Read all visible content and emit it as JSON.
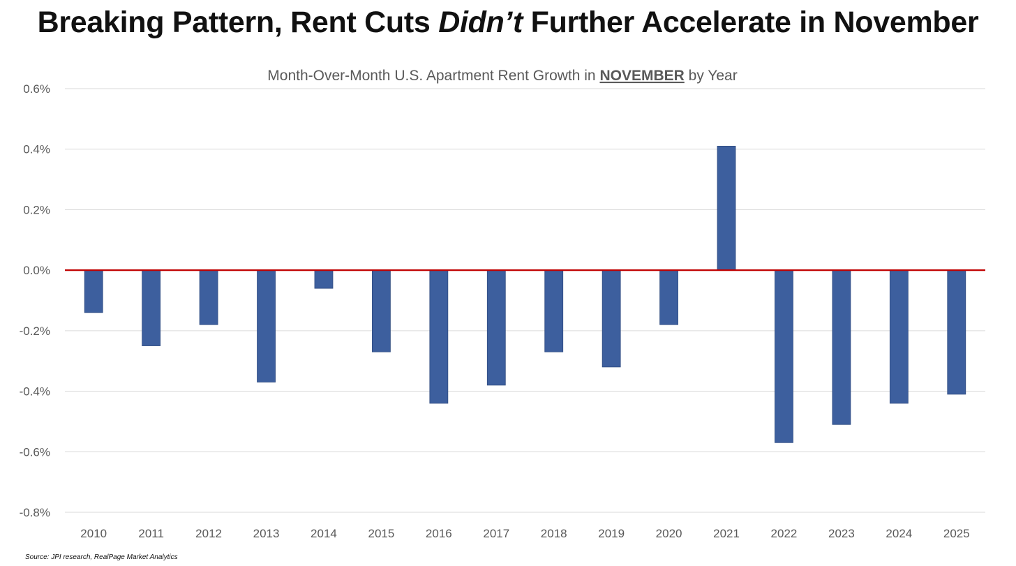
{
  "title": {
    "part1": "Breaking Pattern, Rent Cuts ",
    "italic": "Didn’t",
    "part2": " Further Accelerate in November"
  },
  "source": "Source: JPI research, RealPage Market Analytics",
  "colors": {
    "bar": "#3d5f9e",
    "zero_line": "#c00000",
    "grid": "#d9d9d9"
  },
  "chart_data": {
    "type": "bar",
    "title_parts": {
      "pre": "Month-Over-Month U.S. Apartment Rent Growth in ",
      "emph": "NOVEMBER",
      "post": " by Year"
    },
    "categories": [
      "2010",
      "2011",
      "2012",
      "2013",
      "2014",
      "2015",
      "2016",
      "2017",
      "2018",
      "2019",
      "2020",
      "2021",
      "2022",
      "2023",
      "2024",
      "2025"
    ],
    "values": [
      -0.14,
      -0.25,
      -0.18,
      -0.37,
      -0.06,
      -0.27,
      -0.44,
      -0.38,
      -0.27,
      -0.32,
      -0.18,
      0.41,
      -0.57,
      -0.51,
      -0.44,
      -0.41
    ],
    "unit": "%",
    "ylim": [
      -0.8,
      0.6
    ],
    "yticks": [
      0.6,
      0.4,
      0.2,
      0.0,
      -0.2,
      -0.4,
      -0.6,
      -0.8
    ],
    "ytick_labels": [
      "0.6%",
      "0.4%",
      "0.2%",
      "0.0%",
      "-0.2%",
      "-0.4%",
      "-0.6%",
      "-0.8%"
    ],
    "grid": true,
    "legend": "none"
  }
}
